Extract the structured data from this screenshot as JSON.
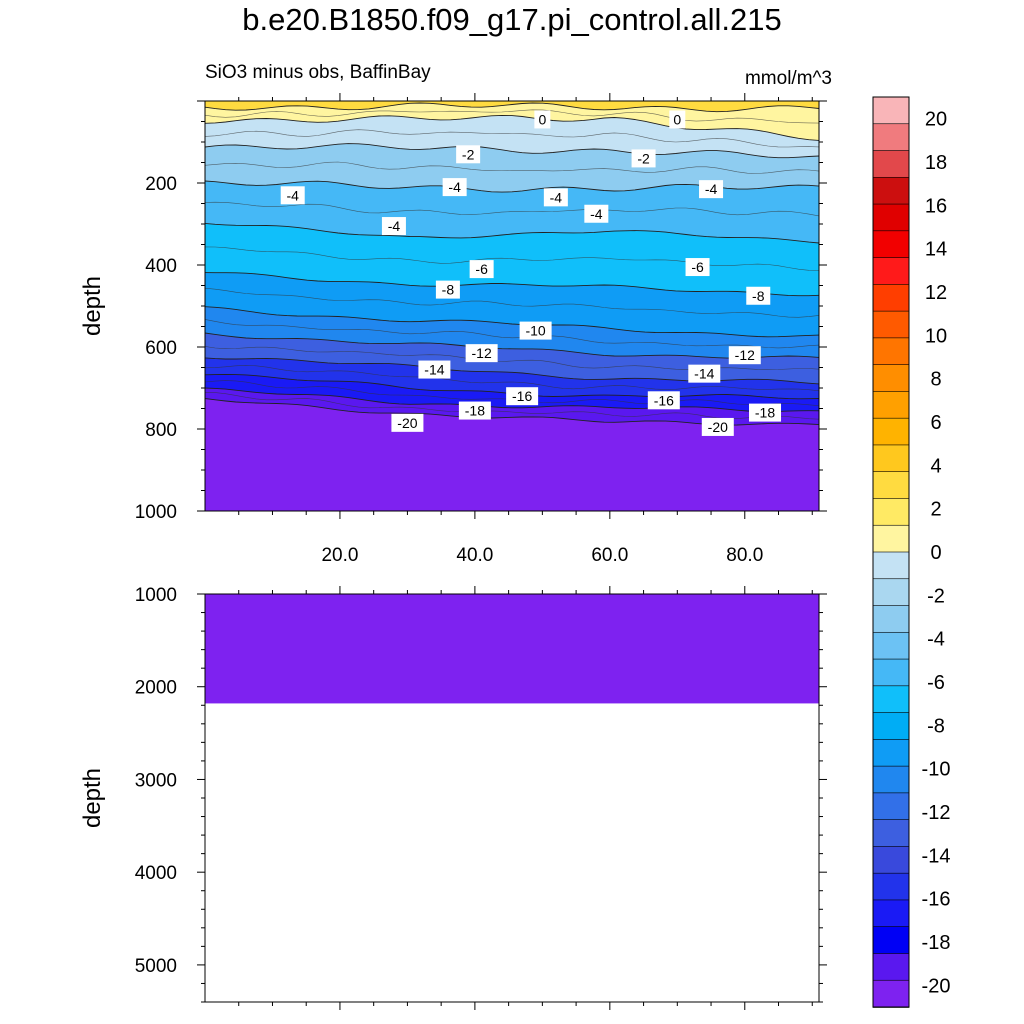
{
  "chart_data": {
    "type": "contour",
    "title": "b.e20.B1850.f09_g17.pi_control.all.215",
    "subtitle": "SiO3 minus obs, BaffinBay",
    "units": "mmol/m^3",
    "ylabel": "depth",
    "xlim": [
      0,
      91
    ],
    "x_ticks": [
      "20.0",
      "40.0",
      "60.0",
      "80.0"
    ],
    "x_tick_values": [
      20,
      40,
      60,
      80
    ],
    "upper_panel": {
      "ylim": [
        0,
        1000
      ],
      "y_ticks": [
        "200",
        "400",
        "600",
        "800",
        "1000"
      ],
      "y_tick_values": [
        200,
        400,
        600,
        800,
        1000
      ],
      "contour_labels": [
        {
          "text": "0",
          "x": 50,
          "depth": 45
        },
        {
          "text": "0",
          "x": 70,
          "depth": 45
        },
        {
          "text": "-2",
          "x": 39,
          "depth": 130
        },
        {
          "text": "-2",
          "x": 65,
          "depth": 140
        },
        {
          "text": "-4",
          "x": 13,
          "depth": 230
        },
        {
          "text": "-4",
          "x": 37,
          "depth": 210
        },
        {
          "text": "-4",
          "x": 52,
          "depth": 235
        },
        {
          "text": "-4",
          "x": 58,
          "depth": 275
        },
        {
          "text": "-4",
          "x": 75,
          "depth": 215
        },
        {
          "text": "-4",
          "x": 28,
          "depth": 305
        },
        {
          "text": "-6",
          "x": 41,
          "depth": 410
        },
        {
          "text": "-6",
          "x": 73,
          "depth": 405
        },
        {
          "text": "-8",
          "x": 36,
          "depth": 460
        },
        {
          "text": "-8",
          "x": 82,
          "depth": 475
        },
        {
          "text": "-10",
          "x": 49,
          "depth": 560
        },
        {
          "text": "-12",
          "x": 41,
          "depth": 615
        },
        {
          "text": "-12",
          "x": 80,
          "depth": 620
        },
        {
          "text": "-14",
          "x": 34,
          "depth": 655
        },
        {
          "text": "-14",
          "x": 74,
          "depth": 665
        },
        {
          "text": "-16",
          "x": 47,
          "depth": 720
        },
        {
          "text": "-16",
          "x": 68,
          "depth": 730
        },
        {
          "text": "-18",
          "x": 40,
          "depth": 755
        },
        {
          "text": "-18",
          "x": 83,
          "depth": 760
        },
        {
          "text": "-20",
          "x": 30,
          "depth": 785
        },
        {
          "text": "-20",
          "x": 76,
          "depth": 795
        }
      ],
      "contour_depths": {
        "levels": [
          2,
          0,
          -2,
          -4,
          -6,
          -8,
          -10,
          -12,
          -14,
          -16,
          -18,
          -20
        ],
        "x": [
          0,
          30,
          60,
          91
        ],
        "depth_at_level": [
          [
            15,
            12,
            15,
            18
          ],
          [
            45,
            45,
            40,
            95
          ],
          [
            110,
            115,
            120,
            140
          ],
          [
            200,
            210,
            215,
            210
          ],
          [
            300,
            330,
            320,
            340
          ],
          [
            420,
            445,
            455,
            470
          ],
          [
            505,
            535,
            555,
            575
          ],
          [
            565,
            595,
            615,
            630
          ],
          [
            620,
            650,
            675,
            690
          ],
          [
            665,
            700,
            720,
            725
          ],
          [
            705,
            735,
            750,
            755
          ],
          [
            730,
            760,
            785,
            785
          ]
        ]
      },
      "filled_below_min_color": "#7E22F0"
    },
    "lower_panel": {
      "ylim": [
        1000,
        5400
      ],
      "y_ticks": [
        "1000",
        "2000",
        "3000",
        "4000",
        "5000"
      ],
      "y_tick_values": [
        1000,
        2000,
        3000,
        4000,
        5000
      ],
      "filled_to_depth": 2180,
      "fill_color": "#7E22F0"
    },
    "colorbar": {
      "labels": [
        "20",
        "18",
        "16",
        "14",
        "12",
        "10",
        "8",
        "6",
        "4",
        "2",
        "0",
        "-2",
        "-4",
        "-6",
        "-8",
        "-10",
        "-12",
        "-14",
        "-16",
        "-18",
        "-20"
      ],
      "colors": [
        "#F9B5B8",
        "#F07B7E",
        "#E2484B",
        "#CC0F0F",
        "#E00000",
        "#F20000",
        "#FF1A1A",
        "#FF3E00",
        "#FF5A00",
        "#FF7500",
        "#FF8E00",
        "#FFA000",
        "#FFB300",
        "#FFC81E",
        "#FFDB40",
        "#FFEA64",
        "#FFF5A0",
        "#C4E2F4",
        "#AAD7F0",
        "#8ECCF0",
        "#6CC2F4",
        "#45B8F6",
        "#10BFFA",
        "#00ADF5",
        "#0F9CF5",
        "#2087EF",
        "#3270E8",
        "#3D5FE0",
        "#3949DC",
        "#2233EB",
        "#1A1AF5",
        "#0000F5",
        "#5A18EF",
        "#7E22F0"
      ]
    }
  }
}
